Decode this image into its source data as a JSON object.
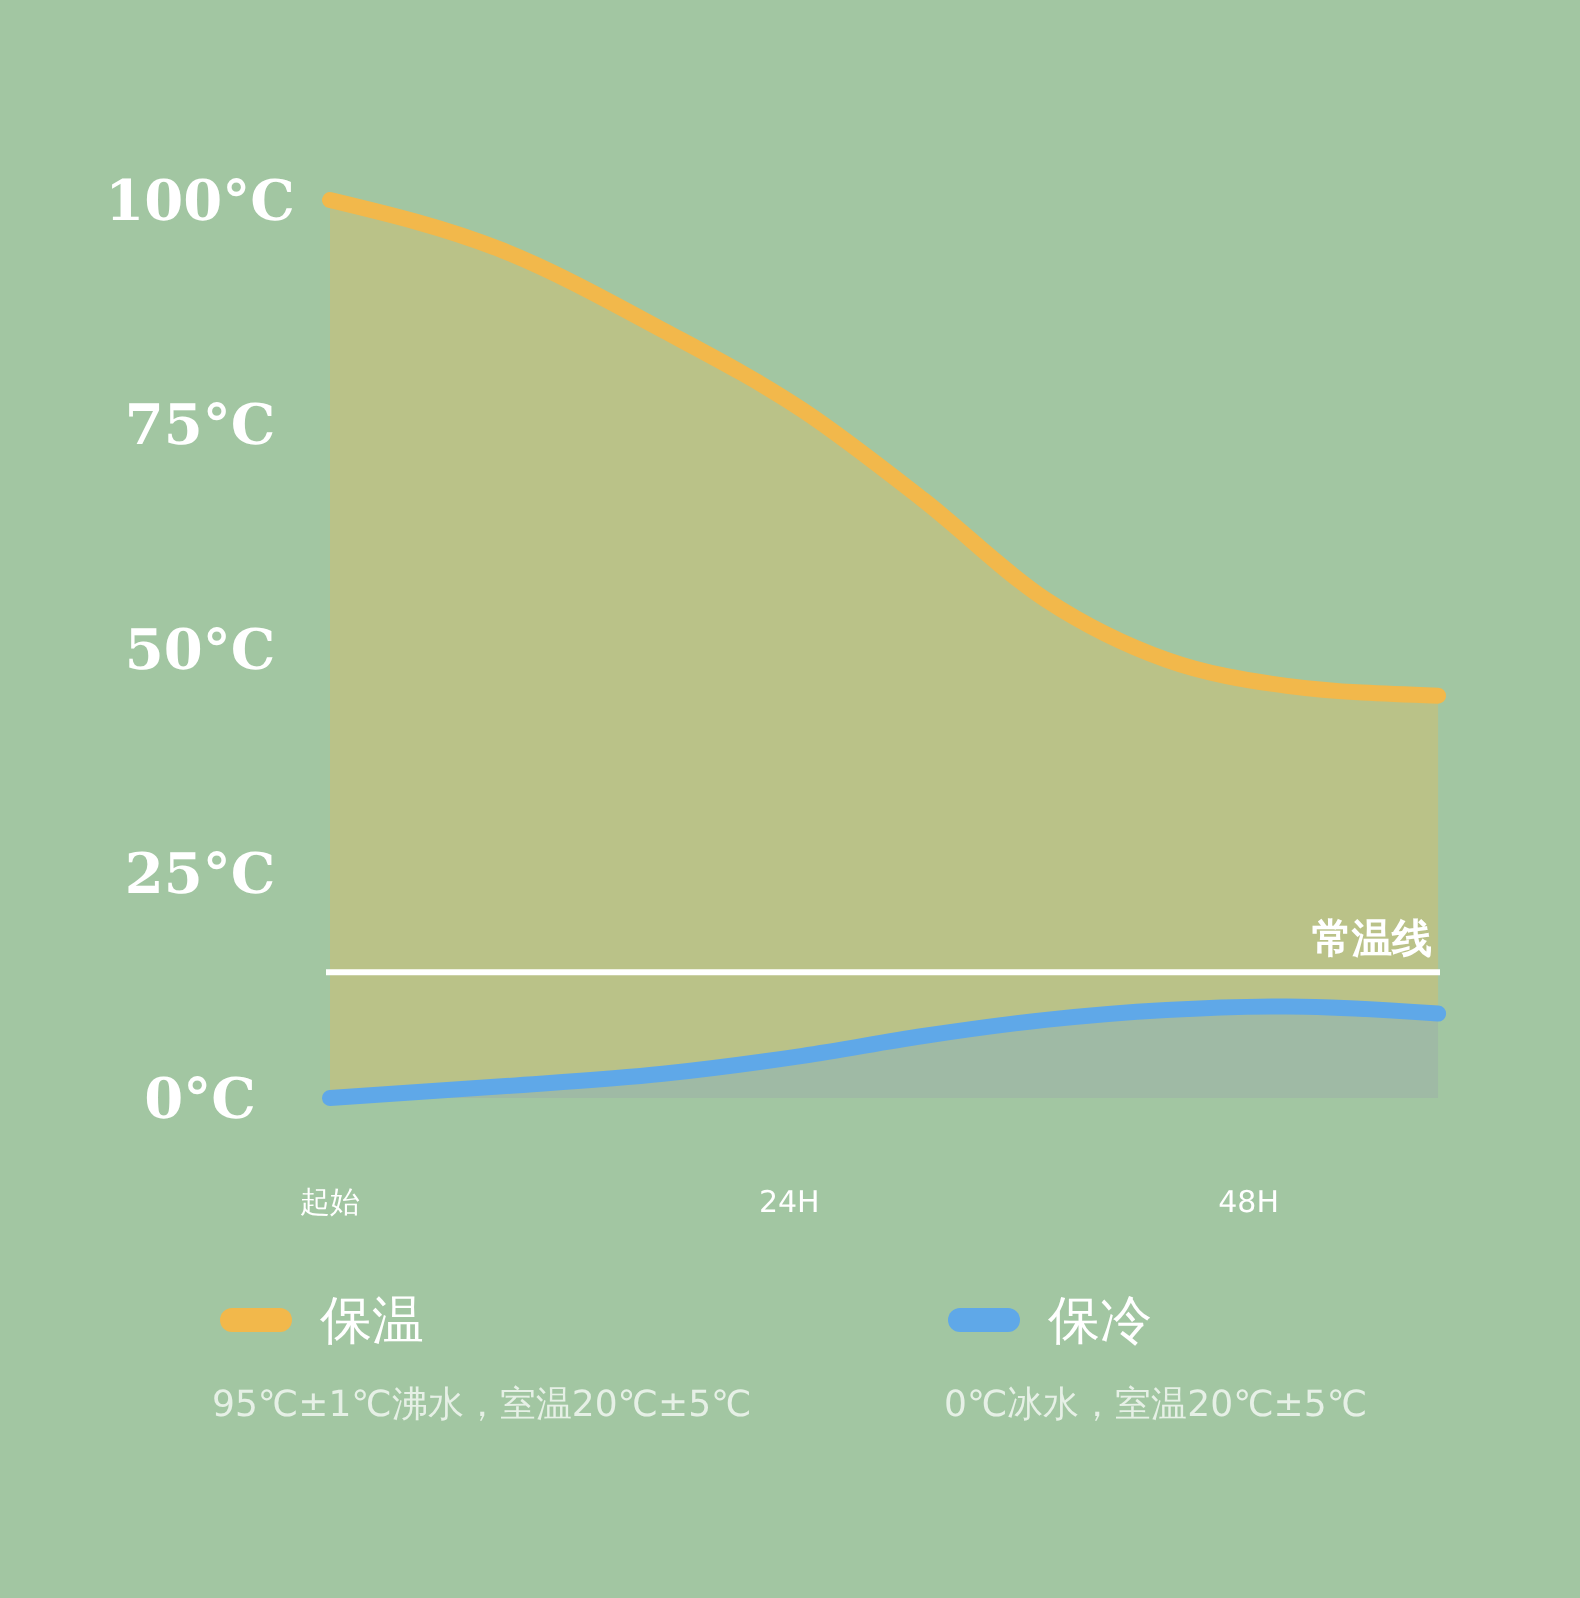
{
  "chart_data": {
    "type": "area",
    "x": [
      0,
      9,
      17.4,
      24.7,
      31,
      37.4,
      43.7,
      50,
      57.9
    ],
    "series": [
      {
        "name": "保温",
        "color": "#f2b84b",
        "values": [
          100,
          94.4,
          85.5,
          76.6,
          66.6,
          55.5,
          48.8,
          45.9,
          44.8
        ]
      },
      {
        "name": "保冷",
        "color": "#5fa8e8",
        "values": [
          0,
          1.3,
          2.7,
          4.7,
          6.9,
          8.7,
          9.8,
          10.2,
          9.4
        ]
      }
    ],
    "xlim": [
      0,
      58
    ],
    "xticks": [
      {
        "value": 0,
        "label": "起始"
      },
      {
        "value": 24,
        "label": "24H"
      },
      {
        "value": 48,
        "label": "48H"
      }
    ],
    "ylim": [
      0,
      100
    ],
    "yticks": [
      {
        "value": 0,
        "label": "0°C"
      },
      {
        "value": 25,
        "label": "25°C"
      },
      {
        "value": 50,
        "label": "50°C"
      },
      {
        "value": 75,
        "label": "75°C"
      },
      {
        "value": 100,
        "label": "100°C"
      }
    ],
    "ref_lines": [
      {
        "axis": "y",
        "value": 14,
        "label": "常温线",
        "color": "#ffffff"
      }
    ],
    "legend": "bottom",
    "grid": false,
    "annotations": [
      "95℃±1℃沸水，室温20℃±5℃",
      "0℃冰水，室温20℃±5℃"
    ]
  }
}
